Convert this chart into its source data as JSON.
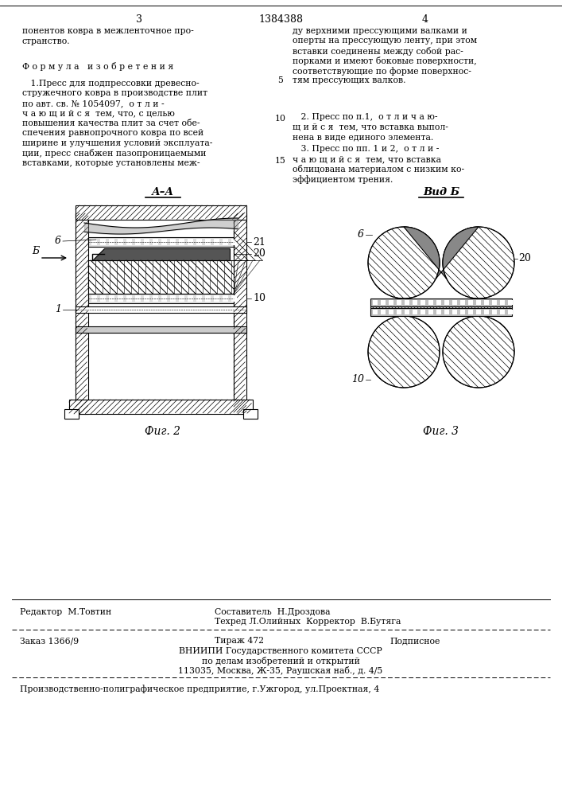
{
  "bg_color": "#ffffff",
  "text_color": "#000000",
  "page_num_left": "3",
  "page_num_center": "1384388",
  "page_num_right": "4",
  "col_left_top": "понентов ковра в межленточное про-\nстранство.",
  "formula_header": "Ф о р м у л а   и з о б р е т е н и я",
  "claim1_line1": "   1.Пресс для подпрессовки древесно-",
  "claim1_line2": "стружечного ковра в производстве плит",
  "claim1_line3": "по авт. св. № 1054097,  о т л и -",
  "claim1_line4": "ч а ю щ и й с я  тем, что, с целью",
  "claim1_line5": "повышения качества плит за счет обе-",
  "claim1_line6": "спечения равнопрочного ковра по всей",
  "claim1_line7": "ширине и улучшения условий эксплуата-",
  "claim1_line8": "ции, пресс снабжен пазопроницаемыми",
  "claim1_line9": "вставками, которые установлены меж-",
  "line_num_5": "5",
  "line_num_10": "10",
  "line_num_15": "15",
  "col_right_line1": "ду верхними прессующими валками и",
  "col_right_line2": "оперты на прессующую ленту, при этом",
  "col_right_line3": "вставки соединены между собой рас-",
  "col_right_line4": "порками и имеют боковые поверхности,",
  "col_right_line5": "соответствующие по форме поверхнос-",
  "col_right_line6": "тям прессующих валков.",
  "claim2_line1": "   2. Пресс по п.1,  о т л и ч а ю-",
  "claim2_line2": "щ и й с я  тем, что вставка выпол-",
  "claim2_line3": "нена в виде единого элемента.",
  "claim3_line1": "   3. Пресс по пп. 1 и 2,  о т л и -",
  "claim3_line2": "ч а ю щ и й с я  тем, что вставка",
  "claim3_line3": "облицована материалом с низким ко-",
  "claim3_line4": "эффициентом трения.",
  "fig2_label": "А–А",
  "fig2_caption": "Фиг. 2",
  "fig3_label": "Вид Б",
  "fig3_caption": "Фиг. 3",
  "arrow_b_label": "Б",
  "editor_line": "Редактор  М.Товтин",
  "composer_line1": "Составитель  Н.Дроздова",
  "composer_line2": "Техред Л.Олийных  Корректор  В.Бутяга",
  "order_line": "Заказ 1366/9",
  "tirazh_line": "Тираж 472",
  "podpisnoe_line": "Подписное",
  "vniip_line": "ВНИИПИ Государственного комитета СССР",
  "vniip_line2": "по делам изобретений и открытий",
  "vniip_line3": "113035, Москва, Ж-35, Раушская наб., д. 4/5",
  "enterprise_line": "Производственно-полиграфическое предприятие, г.Ужгород, ул.Проектная, 4"
}
